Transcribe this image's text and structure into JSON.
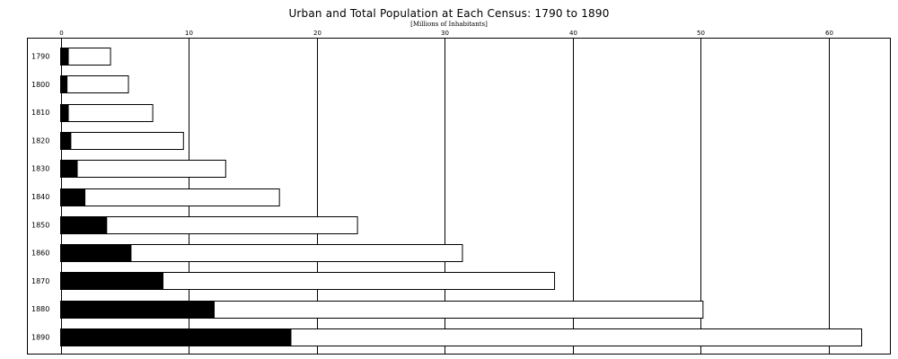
{
  "chart_data": {
    "type": "bar",
    "orientation": "horizontal",
    "title": "Urban and Total Population at Each Census: 1790 to 1890",
    "subtitle": "[Millions of Inhabitants]",
    "categories": [
      "1790",
      "1800",
      "1810",
      "1820",
      "1830",
      "1840",
      "1850",
      "1860",
      "1870",
      "1880",
      "1890"
    ],
    "series": [
      {
        "values": [
          0.6,
          0.5,
          0.6,
          0.8,
          1.3,
          1.9,
          3.6,
          5.5,
          8.0,
          12.0,
          18.0
        ],
        "color": "#000000"
      },
      {
        "values": [
          3.9,
          5.3,
          7.2,
          9.6,
          12.9,
          17.1,
          23.2,
          31.4,
          38.6,
          50.2,
          62.6
        ],
        "color": "#ffffff"
      }
    ],
    "x_ticks": [
      "0",
      "10",
      "20",
      "30",
      "40",
      "50",
      "60"
    ],
    "xlim": [
      0,
      65
    ],
    "grid": true
  }
}
